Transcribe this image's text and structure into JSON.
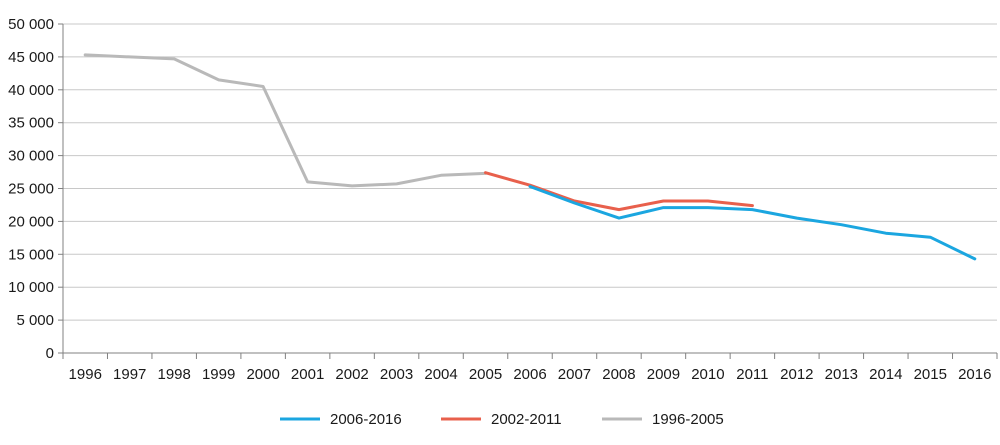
{
  "chart_data": {
    "type": "line",
    "title": "",
    "xlabel": "",
    "ylabel": "",
    "categories": [
      "1996",
      "1997",
      "1998",
      "1999",
      "2000",
      "2001",
      "2002",
      "2003",
      "2004",
      "2005",
      "2006",
      "2007",
      "2008",
      "2009",
      "2010",
      "2011",
      "2012",
      "2013",
      "2014",
      "2015",
      "2016"
    ],
    "y_ticks": [
      "0",
      "5 000",
      "10 000",
      "15 000",
      "20 000",
      "25 000",
      "30 000",
      "35 000",
      "40 000",
      "45 000",
      "50 000"
    ],
    "ylim": [
      0,
      50000
    ],
    "grid": "horizontal",
    "legend_position": "bottom",
    "series": [
      {
        "name": "2006-2016",
        "color": "#1ba6e0",
        "points": [
          {
            "x": "2006",
            "y": 25300
          },
          {
            "x": "2007",
            "y": 22800
          },
          {
            "x": "2008",
            "y": 20500
          },
          {
            "x": "2009",
            "y": 22100
          },
          {
            "x": "2010",
            "y": 22100
          },
          {
            "x": "2011",
            "y": 21800
          },
          {
            "x": "2012",
            "y": 20500
          },
          {
            "x": "2013",
            "y": 19500
          },
          {
            "x": "2014",
            "y": 18200
          },
          {
            "x": "2015",
            "y": 17600
          },
          {
            "x": "2016",
            "y": 14300
          }
        ]
      },
      {
        "name": "2002-2011",
        "color": "#e8604c",
        "points": [
          {
            "x": "2005",
            "y": 27400
          },
          {
            "x": "2006",
            "y": 25500
          },
          {
            "x": "2007",
            "y": 23100
          },
          {
            "x": "2008",
            "y": 21800
          },
          {
            "x": "2009",
            "y": 23100
          },
          {
            "x": "2010",
            "y": 23100
          },
          {
            "x": "2011",
            "y": 22400
          }
        ]
      },
      {
        "name": "1996-2005",
        "color": "#b9b9b9",
        "points": [
          {
            "x": "1996",
            "y": 45300
          },
          {
            "x": "1997",
            "y": 45000
          },
          {
            "x": "1998",
            "y": 44700
          },
          {
            "x": "1999",
            "y": 41500
          },
          {
            "x": "2000",
            "y": 40500
          },
          {
            "x": "2001",
            "y": 26000
          },
          {
            "x": "2002",
            "y": 25400
          },
          {
            "x": "2003",
            "y": 25700
          },
          {
            "x": "2004",
            "y": 27000
          },
          {
            "x": "2005",
            "y": 27300
          }
        ]
      }
    ]
  }
}
